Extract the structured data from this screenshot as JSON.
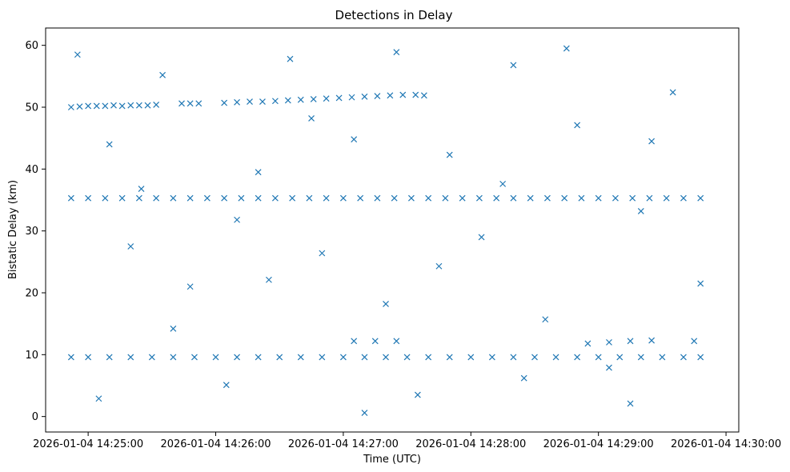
{
  "chart_data": {
    "type": "scatter",
    "title": "Detections in Delay",
    "xlabel": "Time (UTC)",
    "ylabel": "Bistatic Delay (km)",
    "x_unit": "time (HH:MM:SS, 2026-01-04)",
    "xlim": [
      "14:24:40",
      "14:30:06"
    ],
    "ylim": [
      -2.5,
      62.8
    ],
    "x_ticks": [
      {
        "value": "14:25:00",
        "label": "2026-01-04 14:25:00"
      },
      {
        "value": "14:26:00",
        "label": "2026-01-04 14:26:00"
      },
      {
        "value": "14:27:00",
        "label": "2026-01-04 14:27:00"
      },
      {
        "value": "14:28:00",
        "label": "2026-01-04 14:28:00"
      },
      {
        "value": "14:29:00",
        "label": "2026-01-04 14:29:00"
      },
      {
        "value": "14:30:00",
        "label": "2026-01-04 14:30:00"
      }
    ],
    "y_ticks": [
      0,
      10,
      20,
      30,
      40,
      50,
      60
    ],
    "grid": false,
    "legend": "none",
    "marker": "x",
    "color": "#1f77b4",
    "series": [
      {
        "points": [
          [
            "14:24:52",
            50.0
          ],
          [
            "14:24:56",
            50.1
          ],
          [
            "14:25:00",
            50.2
          ],
          [
            "14:25:04",
            50.2
          ],
          [
            "14:25:08",
            50.2
          ],
          [
            "14:25:12",
            50.3
          ],
          [
            "14:25:16",
            50.2
          ],
          [
            "14:25:20",
            50.3
          ],
          [
            "14:25:24",
            50.3
          ],
          [
            "14:25:28",
            50.3
          ],
          [
            "14:25:32",
            50.4
          ],
          [
            "14:25:44",
            50.6
          ],
          [
            "14:25:48",
            50.6
          ],
          [
            "14:25:52",
            50.6
          ],
          [
            "14:26:04",
            50.7
          ],
          [
            "14:26:10",
            50.8
          ],
          [
            "14:26:16",
            50.9
          ],
          [
            "14:26:22",
            50.9
          ],
          [
            "14:26:28",
            51.0
          ],
          [
            "14:26:34",
            51.1
          ],
          [
            "14:26:40",
            51.2
          ],
          [
            "14:26:46",
            51.3
          ],
          [
            "14:26:52",
            51.4
          ],
          [
            "14:26:58",
            51.5
          ],
          [
            "14:27:04",
            51.6
          ],
          [
            "14:27:10",
            51.7
          ],
          [
            "14:27:16",
            51.8
          ],
          [
            "14:27:22",
            51.9
          ],
          [
            "14:27:28",
            52.0
          ],
          [
            "14:27:34",
            52.0
          ],
          [
            "14:27:38",
            51.9
          ],
          [
            "14:24:52",
            35.3
          ],
          [
            "14:25:00",
            35.3
          ],
          [
            "14:25:08",
            35.3
          ],
          [
            "14:25:16",
            35.3
          ],
          [
            "14:25:24",
            35.3
          ],
          [
            "14:25:32",
            35.3
          ],
          [
            "14:25:40",
            35.3
          ],
          [
            "14:25:48",
            35.3
          ],
          [
            "14:25:56",
            35.3
          ],
          [
            "14:26:04",
            35.3
          ],
          [
            "14:26:12",
            35.3
          ],
          [
            "14:26:20",
            35.3
          ],
          [
            "14:26:28",
            35.3
          ],
          [
            "14:26:36",
            35.3
          ],
          [
            "14:26:44",
            35.3
          ],
          [
            "14:26:52",
            35.3
          ],
          [
            "14:27:00",
            35.3
          ],
          [
            "14:27:08",
            35.3
          ],
          [
            "14:27:16",
            35.3
          ],
          [
            "14:27:24",
            35.3
          ],
          [
            "14:27:32",
            35.3
          ],
          [
            "14:27:40",
            35.3
          ],
          [
            "14:27:48",
            35.3
          ],
          [
            "14:27:56",
            35.3
          ],
          [
            "14:28:04",
            35.3
          ],
          [
            "14:28:12",
            35.3
          ],
          [
            "14:28:20",
            35.3
          ],
          [
            "14:28:28",
            35.3
          ],
          [
            "14:28:36",
            35.3
          ],
          [
            "14:28:44",
            35.3
          ],
          [
            "14:28:52",
            35.3
          ],
          [
            "14:29:00",
            35.3
          ],
          [
            "14:29:08",
            35.3
          ],
          [
            "14:29:16",
            35.3
          ],
          [
            "14:29:24",
            35.3
          ],
          [
            "14:29:32",
            35.3
          ],
          [
            "14:29:40",
            35.3
          ],
          [
            "14:29:48",
            35.3
          ],
          [
            "14:24:52",
            9.6
          ],
          [
            "14:25:00",
            9.6
          ],
          [
            "14:25:10",
            9.6
          ],
          [
            "14:25:20",
            9.6
          ],
          [
            "14:25:30",
            9.6
          ],
          [
            "14:25:40",
            9.6
          ],
          [
            "14:25:50",
            9.6
          ],
          [
            "14:26:00",
            9.6
          ],
          [
            "14:26:10",
            9.6
          ],
          [
            "14:26:20",
            9.6
          ],
          [
            "14:26:30",
            9.6
          ],
          [
            "14:26:40",
            9.6
          ],
          [
            "14:26:50",
            9.6
          ],
          [
            "14:27:00",
            9.6
          ],
          [
            "14:27:10",
            9.6
          ],
          [
            "14:27:20",
            9.6
          ],
          [
            "14:27:30",
            9.6
          ],
          [
            "14:27:40",
            9.6
          ],
          [
            "14:27:50",
            9.6
          ],
          [
            "14:28:00",
            9.6
          ],
          [
            "14:28:10",
            9.6
          ],
          [
            "14:28:20",
            9.6
          ],
          [
            "14:28:30",
            9.6
          ],
          [
            "14:28:40",
            9.6
          ],
          [
            "14:28:50",
            9.6
          ],
          [
            "14:29:00",
            9.6
          ],
          [
            "14:29:10",
            9.6
          ],
          [
            "14:29:20",
            9.6
          ],
          [
            "14:29:30",
            9.6
          ],
          [
            "14:29:40",
            9.6
          ],
          [
            "14:29:48",
            9.6
          ],
          [
            "14:27:05",
            12.2
          ],
          [
            "14:27:15",
            12.2
          ],
          [
            "14:27:25",
            12.2
          ],
          [
            "14:28:55",
            11.8
          ],
          [
            "14:29:05",
            12.0
          ],
          [
            "14:29:15",
            12.2
          ],
          [
            "14:29:25",
            12.3
          ],
          [
            "14:29:45",
            12.2
          ],
          [
            "14:24:55",
            58.5
          ],
          [
            "14:25:10",
            44.0
          ],
          [
            "14:25:20",
            27.5
          ],
          [
            "14:25:35",
            55.2
          ],
          [
            "14:25:48",
            21.0
          ],
          [
            "14:26:05",
            5.1
          ],
          [
            "14:26:20",
            39.5
          ],
          [
            "14:26:35",
            57.8
          ],
          [
            "14:26:50",
            26.4
          ],
          [
            "14:27:05",
            44.8
          ],
          [
            "14:27:20",
            18.2
          ],
          [
            "14:27:35",
            3.5
          ],
          [
            "14:27:50",
            42.3
          ],
          [
            "14:28:05",
            29.0
          ],
          [
            "14:28:20",
            56.8
          ],
          [
            "14:28:35",
            15.7
          ],
          [
            "14:28:50",
            47.1
          ],
          [
            "14:29:05",
            7.9
          ],
          [
            "14:29:20",
            33.2
          ],
          [
            "14:29:35",
            52.4
          ],
          [
            "14:29:48",
            21.5
          ],
          [
            "14:25:05",
            2.9
          ],
          [
            "14:25:40",
            14.2
          ],
          [
            "14:26:10",
            31.8
          ],
          [
            "14:26:45",
            48.2
          ],
          [
            "14:27:10",
            0.6
          ],
          [
            "14:27:45",
            24.3
          ],
          [
            "14:28:15",
            37.6
          ],
          [
            "14:28:45",
            59.5
          ],
          [
            "14:29:15",
            2.1
          ],
          [
            "14:25:25",
            36.8
          ],
          [
            "14:26:25",
            22.1
          ],
          [
            "14:27:25",
            58.9
          ],
          [
            "14:28:25",
            6.2
          ],
          [
            "14:29:25",
            44.5
          ]
        ]
      }
    ]
  }
}
